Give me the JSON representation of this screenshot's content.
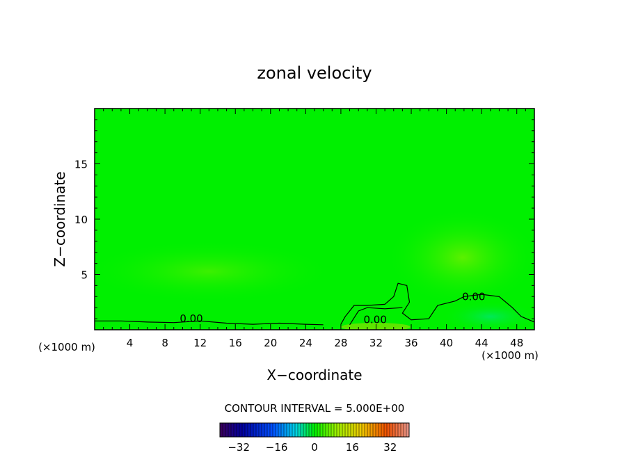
{
  "chart_data": {
    "type": "heatmap",
    "title": "zonal velocity",
    "xlabel": "X−coordinate",
    "ylabel": "Z−coordinate",
    "x_unit_left": "(×1000 m)",
    "x_unit_right": "(×1000 m)",
    "xlim": [
      0,
      50
    ],
    "ylim": [
      0,
      20
    ],
    "x_ticks": [
      4,
      8,
      12,
      16,
      20,
      24,
      28,
      32,
      36,
      40,
      44,
      48
    ],
    "x_tick_labels": [
      "4",
      "8",
      "12",
      "16",
      "20",
      "24",
      "28",
      "32",
      "36",
      "40",
      "44",
      "48"
    ],
    "y_ticks": [
      5,
      10,
      15
    ],
    "y_tick_labels": [
      "5",
      "10",
      "15"
    ],
    "contour_interval_text": "CONTOUR INTERVAL = 5.000E+00",
    "contour_labels": [
      {
        "text": "0.00",
        "x": 11.0,
        "z": 1.0
      },
      {
        "text": "0.00",
        "x": 31.9,
        "z": 0.9
      },
      {
        "text": "0.00",
        "x": 43.1,
        "z": 3.0
      }
    ],
    "zero_contours": [
      {
        "points": [
          [
            0,
            0.8
          ],
          [
            3,
            0.8
          ],
          [
            6,
            0.7
          ],
          [
            9,
            0.65
          ],
          [
            12,
            0.8
          ],
          [
            15,
            0.6
          ],
          [
            18,
            0.5
          ],
          [
            21,
            0.6
          ],
          [
            24,
            0.5
          ],
          [
            26,
            0.45
          ]
        ]
      },
      {
        "points": [
          [
            28,
            0.5
          ],
          [
            28.5,
            1.2
          ],
          [
            29.5,
            2.2
          ],
          [
            31,
            2.2
          ],
          [
            33,
            2.3
          ],
          [
            34,
            3.0
          ],
          [
            34.5,
            4.2
          ],
          [
            35.5,
            4.0
          ],
          [
            35.8,
            2.5
          ],
          [
            35,
            1.5
          ],
          [
            36,
            0.9
          ],
          [
            38,
            1.0
          ],
          [
            39,
            2.2
          ],
          [
            41,
            2.6
          ],
          [
            42,
            3.0
          ],
          [
            44,
            3.2
          ],
          [
            46,
            3.0
          ],
          [
            47.5,
            2.0
          ],
          [
            48.5,
            1.2
          ],
          [
            50,
            0.7
          ]
        ]
      },
      {
        "points": [
          [
            29,
            0.45
          ],
          [
            30,
            1.7
          ],
          [
            31,
            2.0
          ],
          [
            33,
            1.9
          ],
          [
            35,
            2.0
          ]
        ]
      }
    ],
    "colorbar": {
      "min": -40,
      "max": 40,
      "tick_values": [
        -32,
        -16,
        0,
        16,
        32
      ],
      "tick_labels": [
        "−32",
        "−16",
        "0",
        "16",
        "32"
      ]
    },
    "field_note": "velocity near 0 throughout; slight positive patches near 4–8 km height and negative patch near surface at x=44"
  }
}
